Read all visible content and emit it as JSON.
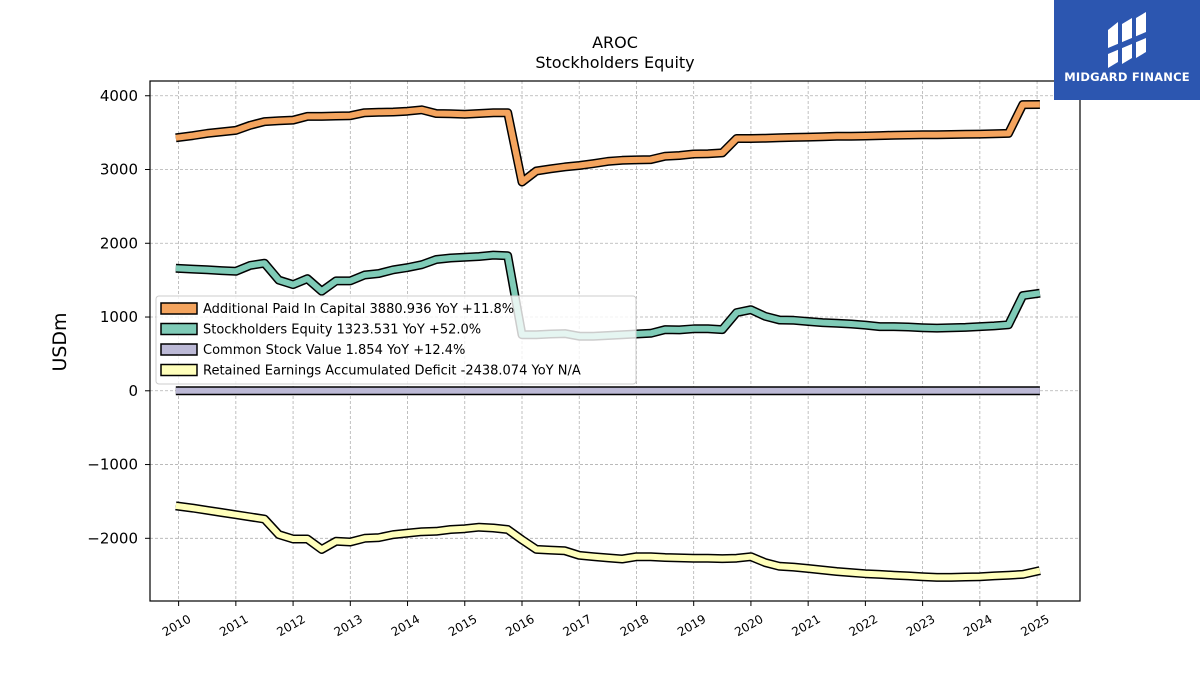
{
  "chart_data": {
    "type": "line",
    "title": "AROC",
    "subtitle": "Stockholders  Equity",
    "ylabel": "USDm",
    "xlim": [
      2009.5,
      2025.75
    ],
    "ylim": [
      -2850,
      4200
    ],
    "yticks": [
      4000,
      3000,
      2000,
      1000,
      0,
      -1000,
      -2000
    ],
    "ytick_labels": [
      "4000",
      "3000",
      "2000",
      "1000",
      "0",
      "−1000",
      "−2000"
    ],
    "xticks": [
      2010,
      2011,
      2012,
      2013,
      2014,
      2015,
      2016,
      2017,
      2018,
      2019,
      2020,
      2021,
      2022,
      2023,
      2024,
      2025
    ],
    "xtick_labels": [
      "2010",
      "2011",
      "2012",
      "2013",
      "2014",
      "2015",
      "2016",
      "2017",
      "2018",
      "2019",
      "2020",
      "2021",
      "2022",
      "2023",
      "2024",
      "2025"
    ],
    "grid": true,
    "legend_position": "center-left",
    "series": [
      {
        "name": "Additional Paid In Capital",
        "legend_label": "Additional Paid In Capital  3880.936 YoY +11.8%",
        "color": "#f4a45e",
        "x": [
          2009.95,
          2010.25,
          2010.5,
          2010.75,
          2011.0,
          2011.25,
          2011.5,
          2011.75,
          2012.0,
          2012.25,
          2012.5,
          2012.75,
          2013.0,
          2013.25,
          2013.5,
          2013.75,
          2014.0,
          2014.25,
          2014.5,
          2014.75,
          2015.0,
          2015.25,
          2015.5,
          2015.75,
          2016.0,
          2016.25,
          2016.5,
          2016.75,
          2017.0,
          2017.25,
          2017.5,
          2017.75,
          2018.0,
          2018.25,
          2018.5,
          2018.75,
          2019.0,
          2019.25,
          2019.5,
          2019.75,
          2020.0,
          2020.25,
          2020.5,
          2020.75,
          2021.0,
          2021.25,
          2021.5,
          2021.75,
          2022.0,
          2022.25,
          2022.5,
          2022.75,
          2023.0,
          2023.25,
          2023.5,
          2023.75,
          2024.0,
          2024.25,
          2024.5,
          2024.75,
          2025.05
        ],
        "y": [
          3430,
          3460,
          3490,
          3510,
          3530,
          3600,
          3650,
          3660,
          3670,
          3720,
          3720,
          3725,
          3730,
          3770,
          3775,
          3780,
          3790,
          3810,
          3760,
          3755,
          3750,
          3760,
          3770,
          3770,
          2830,
          2980,
          3010,
          3035,
          3055,
          3080,
          3110,
          3125,
          3130,
          3135,
          3180,
          3190,
          3210,
          3215,
          3225,
          3420,
          3420,
          3425,
          3430,
          3435,
          3440,
          3445,
          3450,
          3452,
          3455,
          3460,
          3465,
          3468,
          3470,
          3472,
          3475,
          3478,
          3480,
          3485,
          3490,
          3880,
          3881
        ]
      },
      {
        "name": "Stockholders Equity",
        "legend_label": "Stockholders Equity  1323.531 YoY +52.0%",
        "color": "#7fcbb7",
        "x": [
          2009.95,
          2010.25,
          2010.5,
          2010.75,
          2011.0,
          2011.25,
          2011.5,
          2011.75,
          2012.0,
          2012.25,
          2012.5,
          2012.75,
          2013.0,
          2013.25,
          2013.5,
          2013.75,
          2014.0,
          2014.25,
          2014.5,
          2014.75,
          2015.0,
          2015.25,
          2015.5,
          2015.75,
          2016.0,
          2016.25,
          2016.5,
          2016.75,
          2017.0,
          2017.25,
          2017.5,
          2017.75,
          2018.0,
          2018.25,
          2018.5,
          2018.75,
          2019.0,
          2019.25,
          2019.5,
          2019.75,
          2020.0,
          2020.25,
          2020.5,
          2020.75,
          2021.0,
          2021.25,
          2021.5,
          2021.75,
          2022.0,
          2022.25,
          2022.5,
          2022.75,
          2023.0,
          2023.25,
          2023.5,
          2023.75,
          2024.0,
          2024.25,
          2024.5,
          2024.75,
          2025.05
        ],
        "y": [
          1660,
          1650,
          1640,
          1630,
          1620,
          1700,
          1730,
          1500,
          1440,
          1520,
          1350,
          1490,
          1490,
          1570,
          1590,
          1640,
          1670,
          1710,
          1780,
          1800,
          1810,
          1820,
          1840,
          1830,
          760,
          760,
          770,
          775,
          740,
          740,
          750,
          760,
          770,
          780,
          830,
          825,
          840,
          840,
          830,
          1060,
          1100,
          1010,
          960,
          955,
          940,
          925,
          915,
          905,
          890,
          870,
          870,
          865,
          855,
          850,
          855,
          860,
          870,
          880,
          895,
          1290,
          1323.531
        ]
      },
      {
        "name": "Common Stock Value",
        "legend_label": "Common Stock Value  1.854 YoY +12.4%",
        "color": "#bcb9d6",
        "x": [
          2009.95,
          2010.5,
          2011.0,
          2011.5,
          2012.0,
          2012.5,
          2013.0,
          2013.5,
          2014.0,
          2014.5,
          2015.0,
          2015.5,
          2016.0,
          2016.5,
          2017.0,
          2017.5,
          2018.0,
          2018.5,
          2019.0,
          2019.5,
          2020.0,
          2020.5,
          2021.0,
          2021.5,
          2022.0,
          2022.5,
          2023.0,
          2023.5,
          2024.0,
          2024.5,
          2025.05
        ],
        "y": [
          1.0,
          1.0,
          1.1,
          1.1,
          1.2,
          1.2,
          1.2,
          1.3,
          1.3,
          1.3,
          1.4,
          1.4,
          1.4,
          1.4,
          1.5,
          1.5,
          1.5,
          1.5,
          1.6,
          1.6,
          1.6,
          1.6,
          1.6,
          1.6,
          1.6,
          1.6,
          1.65,
          1.65,
          1.65,
          1.8,
          1.854
        ]
      },
      {
        "name": "Retained Earnings Accumulated Deficit",
        "legend_label": "Retained Earnings Accumulated Deficit  -2438.074 YoY N/A",
        "color": "#ffffbb",
        "x": [
          2009.95,
          2010.25,
          2010.5,
          2010.75,
          2011.0,
          2011.25,
          2011.5,
          2011.75,
          2012.0,
          2012.25,
          2012.5,
          2012.75,
          2013.0,
          2013.25,
          2013.5,
          2013.75,
          2014.0,
          2014.25,
          2014.5,
          2014.75,
          2015.0,
          2015.25,
          2015.5,
          2015.75,
          2016.0,
          2016.25,
          2016.5,
          2016.75,
          2017.0,
          2017.25,
          2017.5,
          2017.75,
          2018.0,
          2018.25,
          2018.5,
          2018.75,
          2019.0,
          2019.25,
          2019.5,
          2019.75,
          2020.0,
          2020.25,
          2020.5,
          2020.75,
          2021.0,
          2021.25,
          2021.5,
          2021.75,
          2022.0,
          2022.25,
          2022.5,
          2022.75,
          2023.0,
          2023.25,
          2023.5,
          2023.75,
          2024.0,
          2024.25,
          2024.5,
          2024.75,
          2025.05
        ],
        "y": [
          -1560,
          -1590,
          -1620,
          -1650,
          -1680,
          -1710,
          -1740,
          -1950,
          -2010,
          -2010,
          -2150,
          -2040,
          -2050,
          -2000,
          -1990,
          -1950,
          -1930,
          -1910,
          -1905,
          -1880,
          -1870,
          -1850,
          -1860,
          -1880,
          -2020,
          -2150,
          -2160,
          -2170,
          -2230,
          -2250,
          -2265,
          -2280,
          -2250,
          -2250,
          -2260,
          -2265,
          -2270,
          -2270,
          -2275,
          -2270,
          -2250,
          -2330,
          -2380,
          -2390,
          -2410,
          -2430,
          -2450,
          -2465,
          -2480,
          -2490,
          -2500,
          -2510,
          -2520,
          -2530,
          -2530,
          -2525,
          -2520,
          -2510,
          -2500,
          -2490,
          -2438.074
        ]
      }
    ]
  },
  "logo": {
    "text": "MIDGARD FINANCE"
  }
}
